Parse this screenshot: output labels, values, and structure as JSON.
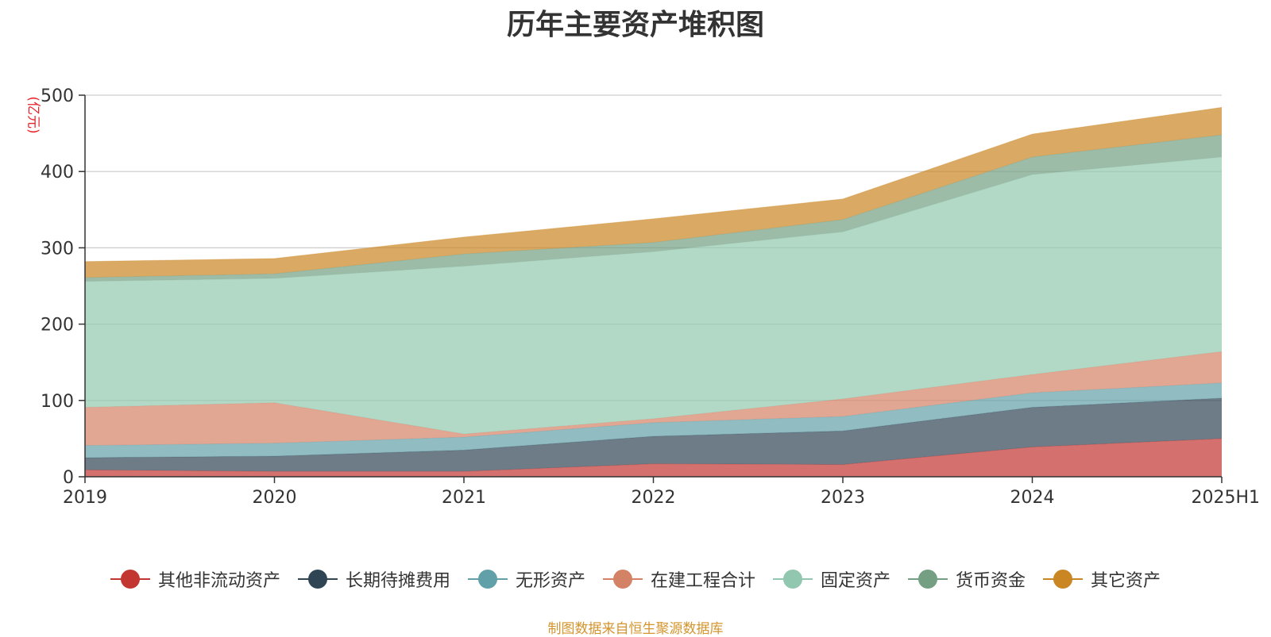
{
  "chart_data": {
    "type": "area",
    "stacked": true,
    "title": "历年主要资产堆积图",
    "unit_label": "(亿元)",
    "source": "制图数据来自恒生聚源数据库",
    "categories": [
      "2019",
      "2020",
      "2021",
      "2022",
      "2023",
      "2024",
      "2025H1"
    ],
    "ylim": [
      0,
      500
    ],
    "y_ticks": [
      "0",
      "100",
      "200",
      "300",
      "400",
      "500"
    ],
    "grid": true,
    "legend_position": "bottom",
    "series": [
      {
        "name": "其他非流动资产",
        "color": "#c23531",
        "values": [
          9,
          7,
          7,
          17,
          16,
          39,
          50
        ]
      },
      {
        "name": "长期待摊费用",
        "color": "#2f4554",
        "values": [
          16,
          20,
          28,
          36,
          44,
          52,
          53
        ]
      },
      {
        "name": "无形资产",
        "color": "#61a0a8",
        "values": [
          16,
          17,
          17,
          18,
          19,
          19,
          20
        ]
      },
      {
        "name": "在建工程合计",
        "color": "#d48265",
        "values": [
          50,
          53,
          4,
          5,
          23,
          24,
          41
        ]
      },
      {
        "name": "固定资产",
        "color": "#91c7ae",
        "values": [
          165,
          163,
          220,
          219,
          219,
          262,
          255
        ]
      },
      {
        "name": "货币资金",
        "color": "#749f83",
        "values": [
          5,
          6,
          16,
          12,
          16,
          23,
          29
        ]
      },
      {
        "name": "其它资产",
        "color": "#ca8622",
        "values": [
          21,
          20,
          22,
          31,
          27,
          30,
          36
        ]
      }
    ]
  }
}
